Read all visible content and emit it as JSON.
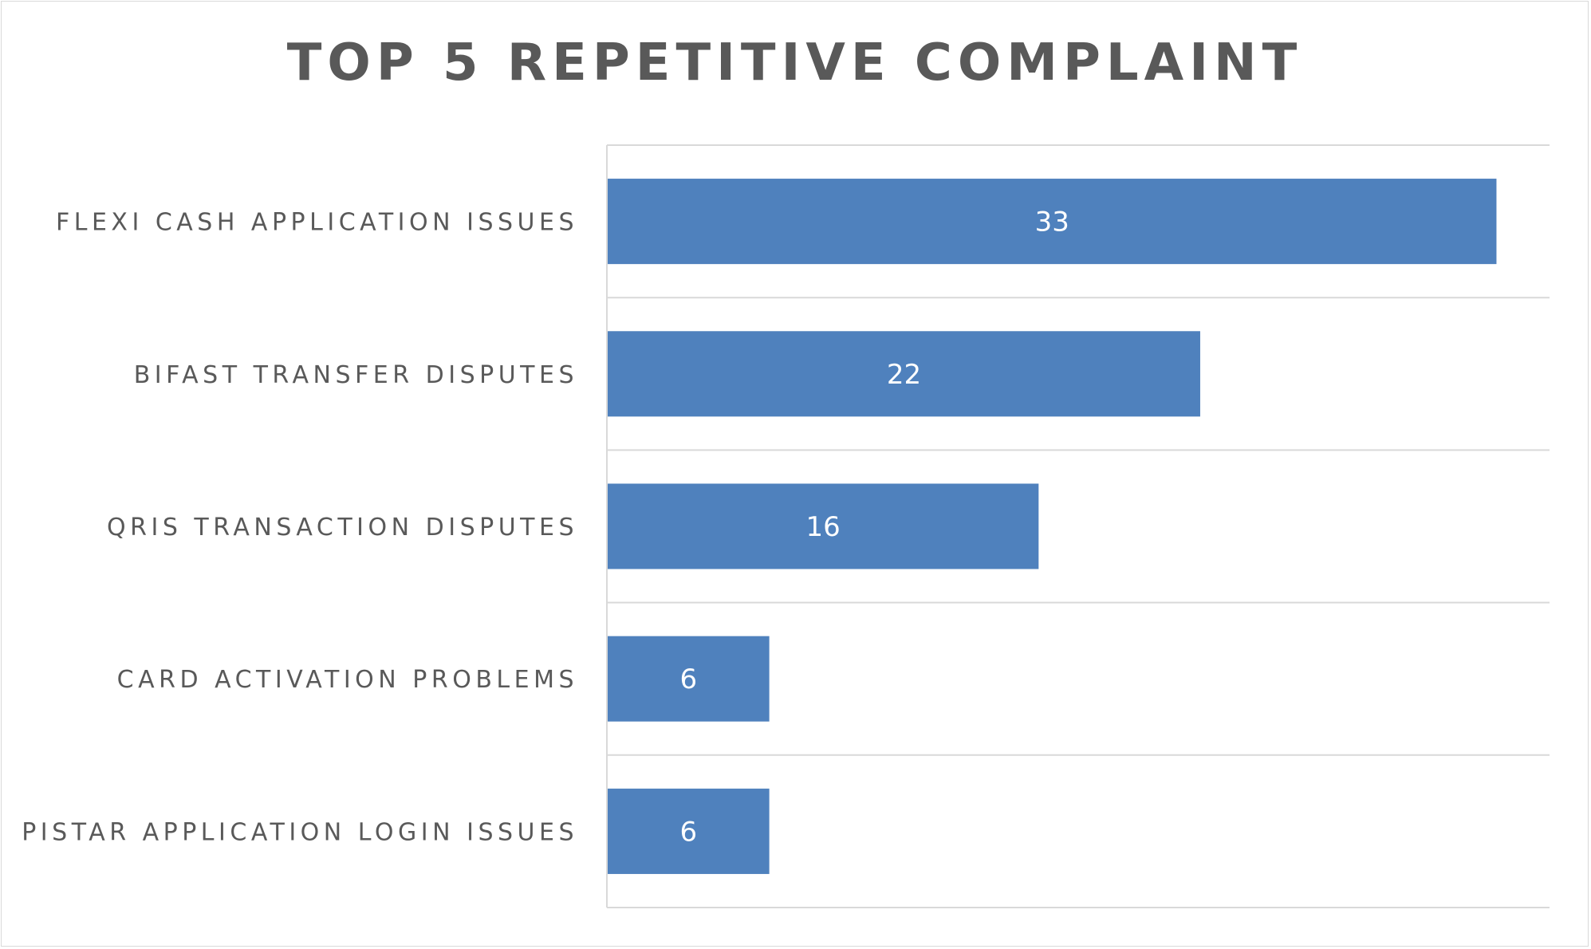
{
  "chart_data": {
    "type": "bar",
    "orientation": "horizontal",
    "title": "TOP 5 REPETITIVE COMPLAINT",
    "categories": [
      "FLEXI CASH APPLICATION ISSUES",
      "BIFAST TRANSFER DISPUTES",
      "QRIS TRANSACTION DISPUTES",
      "CARD ACTIVATION PROBLEMS",
      "PISTAR APPLICATION LOGIN ISSUES"
    ],
    "values": [
      33,
      22,
      16,
      6,
      6
    ],
    "data_labels": true,
    "xlim": [
      0,
      35
    ],
    "grid": true,
    "legend": "none",
    "colors": {
      "bar": "#4f81bd",
      "label_text": "#595959",
      "data_label": "#ffffff",
      "gridline": "#d9d9d9"
    }
  }
}
